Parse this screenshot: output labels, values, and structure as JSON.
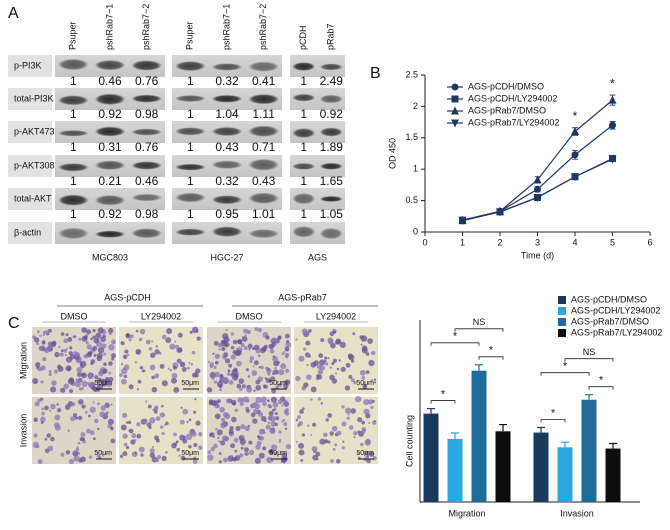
{
  "panel_labels": [
    "A",
    "B",
    "C"
  ],
  "blot": {
    "groups": [
      {
        "name": "MGC803",
        "lanes": [
          "Psuper",
          "pshRab7−1",
          "pshRab7−2"
        ]
      },
      {
        "name": "HGC-27",
        "lanes": [
          "Psuper",
          "pshRab7−1",
          "pshRab7−2"
        ]
      },
      {
        "name": "AGS",
        "lanes": [
          "pCDH",
          "pRab7"
        ]
      }
    ],
    "rows": [
      {
        "name": "p-PI3K",
        "values": [
          [
            1,
            0.46,
            0.76
          ],
          [
            1,
            0.32,
            0.41
          ],
          [
            1,
            2.49
          ]
        ]
      },
      {
        "name": "total-PI3K",
        "values": [
          [
            1,
            0.92,
            0.98
          ],
          [
            1,
            1.04,
            1.11
          ],
          [
            1,
            0.92
          ]
        ]
      },
      {
        "name": "p-AKT473",
        "values": [
          [
            1,
            0.31,
            0.76
          ],
          [
            1,
            0.43,
            0.71
          ],
          [
            1,
            1.89
          ]
        ]
      },
      {
        "name": "p-AKT308",
        "values": [
          [
            1,
            0.21,
            0.46
          ],
          [
            1,
            0.32,
            0.43
          ],
          [
            1,
            1.65
          ]
        ]
      },
      {
        "name": "total-AKT",
        "values": [
          [
            1,
            0.92,
            0.98
          ],
          [
            1,
            0.95,
            1.01
          ],
          [
            1,
            1.05
          ]
        ]
      },
      {
        "name": "β-actin"
      }
    ]
  },
  "images": {
    "groups": [
      "AGS-pCDH",
      "AGS-pRab7"
    ],
    "treatments": [
      "DMSO",
      "LY294002",
      "DMSO",
      "LY294002"
    ],
    "rows": [
      "Migration",
      "Invasion"
    ],
    "scale_bar": "50μm"
  },
  "chart_data": [
    {
      "type": "line",
      "x_label": "Time (d)",
      "y_label": "OD 450",
      "x": [
        1,
        2,
        3,
        4,
        5
      ],
      "xlim": [
        0,
        6
      ],
      "xticks": [
        0,
        1,
        2,
        3,
        4,
        5,
        6
      ],
      "ylim": [
        0,
        2.5
      ],
      "yticks": [
        0,
        0.5,
        1,
        1.5,
        2,
        2.5
      ],
      "series": [
        {
          "name": "AGS-pCDH/DMSO",
          "color": "#1f3864",
          "marker": "circle",
          "values": [
            0.18,
            0.33,
            0.68,
            1.23,
            1.7
          ],
          "errors": [
            0.02,
            0.02,
            0.04,
            0.07,
            0.06
          ]
        },
        {
          "name": "AGS-pCDH/LY294002",
          "color": "#1f3864",
          "marker": "square",
          "values": [
            0.18,
            0.32,
            0.55,
            0.88,
            1.17
          ],
          "errors": [
            0.02,
            0.02,
            0.02,
            0.02,
            0.03
          ]
        },
        {
          "name": "AGS-pRab7/DMSO",
          "color": "#1f3864",
          "marker": "triangle-up",
          "values": [
            0.19,
            0.33,
            0.83,
            1.6,
            2.1
          ],
          "errors": [
            0.02,
            0.02,
            0.05,
            0.06,
            0.08
          ]
        },
        {
          "name": "AGS-pRab7/LY294002",
          "color": "#1f3864",
          "marker": "triangle-down",
          "values": [
            0.19,
            0.32,
            0.55,
            0.88,
            1.16
          ],
          "errors": [
            0.02,
            0.02,
            0.02,
            0.02,
            0.03
          ]
        }
      ],
      "annotations": [
        {
          "text": "*",
          "x": 4
        },
        {
          "text": "*",
          "x": 5
        }
      ],
      "legend": "top-left"
    },
    {
      "type": "bar",
      "y_label": "Cell counting",
      "categories": [
        "Migration",
        "Invasion"
      ],
      "ylim": [
        0,
        480
      ],
      "series": [
        {
          "name": "AGS-pCDH/DMSO",
          "color": "#173a5e",
          "values": [
            210,
            165
          ],
          "errors": [
            12,
            12
          ]
        },
        {
          "name": "AGS-pCDH/LY294002",
          "color": "#2aa7e0",
          "values": [
            150,
            130
          ],
          "errors": [
            14,
            12
          ]
        },
        {
          "name": "AGS-pRab7/DMSO",
          "color": "#1d6c9c",
          "values": [
            312,
            243
          ],
          "errors": [
            14,
            12
          ]
        },
        {
          "name": "AGS-pRab7/LY294002",
          "color": "#0d0d0d",
          "values": [
            168,
            127
          ],
          "errors": [
            16,
            12
          ]
        }
      ],
      "annotations": [
        {
          "text": "*",
          "category": 0,
          "pair": [
            0,
            1
          ]
        },
        {
          "text": "*",
          "category": 0,
          "pair": [
            0,
            2
          ]
        },
        {
          "text": "*",
          "category": 0,
          "pair": [
            2,
            3
          ]
        },
        {
          "text": "NS",
          "category": 0,
          "pair": [
            1,
            3
          ]
        },
        {
          "text": "*",
          "category": 1,
          "pair": [
            0,
            1
          ]
        },
        {
          "text": "*",
          "category": 1,
          "pair": [
            0,
            2
          ]
        },
        {
          "text": "*",
          "category": 1,
          "pair": [
            2,
            3
          ]
        },
        {
          "text": "NS",
          "category": 1,
          "pair": [
            1,
            3
          ]
        }
      ],
      "legend": "top-right"
    }
  ]
}
